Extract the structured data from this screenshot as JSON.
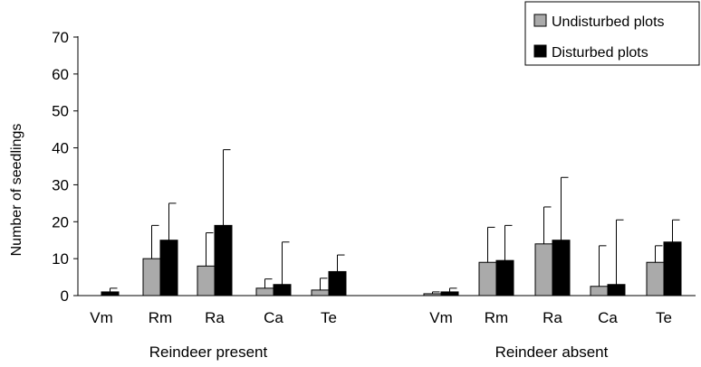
{
  "chart_data": {
    "type": "bar",
    "ylabel": "Number of seedlings",
    "xlabel": "",
    "title": "",
    "ylim": [
      0,
      70
    ],
    "yticks": [
      0,
      10,
      20,
      30,
      40,
      50,
      60,
      70
    ],
    "grid": false,
    "legend_position": "top-right",
    "groups": [
      {
        "label": "Reindeer present",
        "categories": [
          "Vm",
          "Rm",
          "Ra",
          "Ca",
          "Te"
        ]
      },
      {
        "label": "Reindeer absent",
        "categories": [
          "Vm",
          "Rm",
          "Ra",
          "Ca",
          "Te"
        ]
      }
    ],
    "series": [
      {
        "name": "Undisturbed plots",
        "color": "#aaaaaa",
        "values": [
          0,
          10,
          8,
          2,
          1.5,
          0.5,
          9,
          14,
          2.5,
          9
        ],
        "error": [
          0,
          9,
          9,
          2.5,
          3.2,
          0.5,
          9.5,
          10,
          11,
          4.5
        ]
      },
      {
        "name": "Disturbed plots",
        "color": "#000000",
        "values": [
          1,
          15,
          19,
          3,
          6.5,
          1,
          9.5,
          15,
          3,
          14.5
        ],
        "error": [
          1,
          10,
          20.5,
          11.5,
          4.5,
          1,
          9.5,
          17,
          17.5,
          6
        ]
      }
    ]
  }
}
